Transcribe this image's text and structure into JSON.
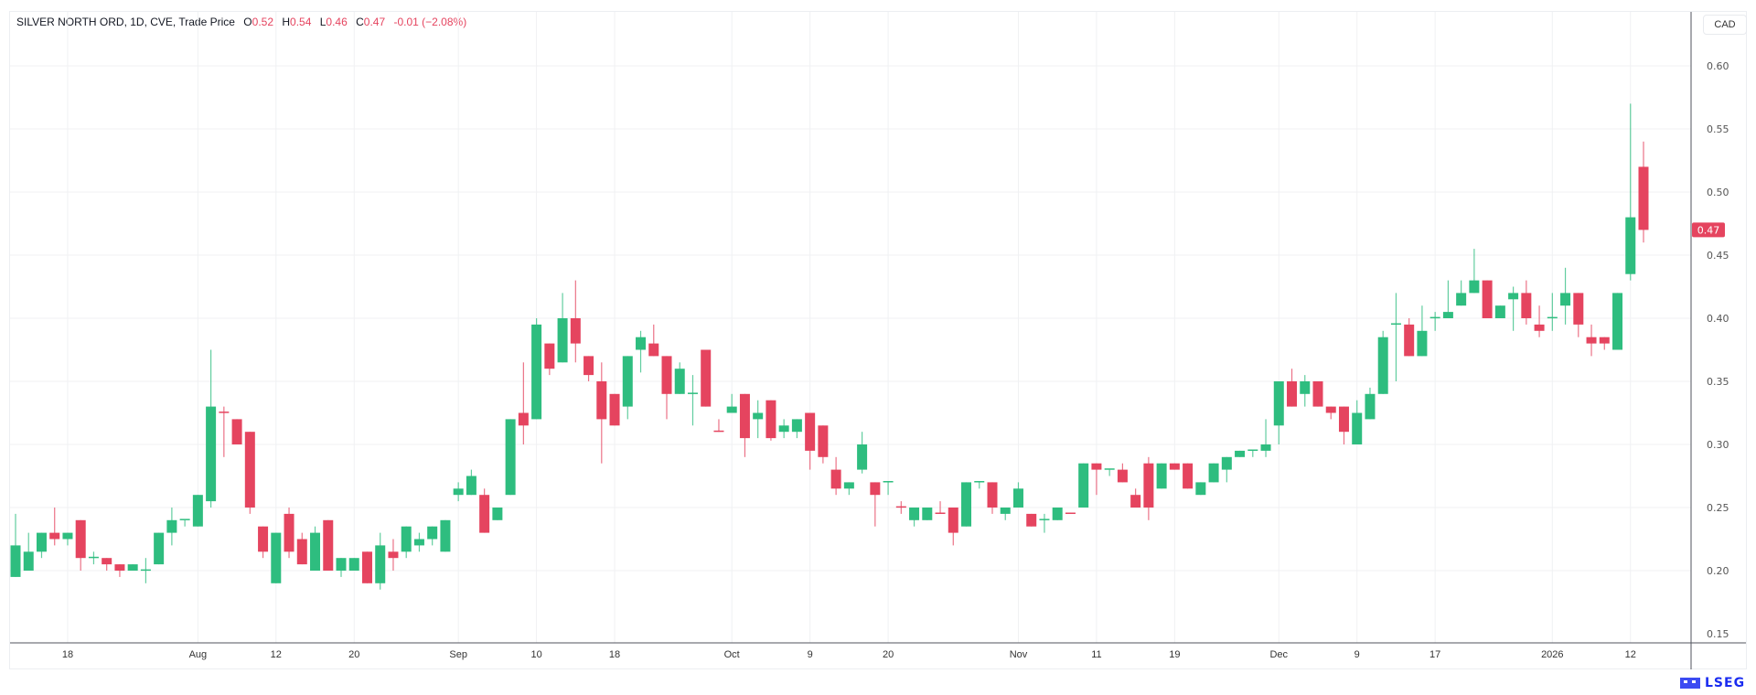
{
  "legend": {
    "title": "SILVER NORTH ORD, 1D, CVE, Trade Price",
    "open_label": "O",
    "open": "0.52",
    "high_label": "H",
    "high": "0.54",
    "low_label": "L",
    "low": "0.46",
    "close_label": "C",
    "close": "0.47",
    "change": "-0.01 (−2.08%)"
  },
  "currency": "CAD",
  "brand": {
    "name": "LSEG",
    "color": "#1a2cf0"
  },
  "colors": {
    "up": "#2ebd7f",
    "down": "#e5445f",
    "grid": "#f0f1f3",
    "axis": "#50535e"
  },
  "chart_data": {
    "type": "candlestick",
    "title": "SILVER NORTH ORD, 1D, CVE, Trade Price",
    "ylim": [
      0.15,
      0.6
    ],
    "y_ticks": [
      "0.60",
      "0.55",
      "0.50",
      "0.45",
      "0.40",
      "0.35",
      "0.30",
      "0.25",
      "0.20",
      "0.15"
    ],
    "grid": true,
    "last_price": "0.47",
    "x_ticks": [
      {
        "label": "18",
        "bar": 4
      },
      {
        "label": "Aug",
        "bar": 14
      },
      {
        "label": "12",
        "bar": 20
      },
      {
        "label": "20",
        "bar": 26
      },
      {
        "label": "Sep",
        "bar": 34
      },
      {
        "label": "10",
        "bar": 40
      },
      {
        "label": "18",
        "bar": 46
      },
      {
        "label": "Oct",
        "bar": 55
      },
      {
        "label": "9",
        "bar": 61
      },
      {
        "label": "20",
        "bar": 67
      },
      {
        "label": "Nov",
        "bar": 77
      },
      {
        "label": "11",
        "bar": 83
      },
      {
        "label": "19",
        "bar": 89
      },
      {
        "label": "Dec",
        "bar": 97
      },
      {
        "label": "9",
        "bar": 103
      },
      {
        "label": "17",
        "bar": 109
      },
      {
        "label": "2026",
        "bar": 118
      },
      {
        "label": "12",
        "bar": 124
      }
    ],
    "ohlc_fields": [
      "open",
      "high",
      "low",
      "close"
    ],
    "candles": [
      [
        0.195,
        0.245,
        0.195,
        0.22
      ],
      [
        0.2,
        0.23,
        0.2,
        0.215
      ],
      [
        0.215,
        0.23,
        0.21,
        0.23
      ],
      [
        0.23,
        0.25,
        0.22,
        0.225
      ],
      [
        0.225,
        0.23,
        0.22,
        0.23
      ],
      [
        0.24,
        0.24,
        0.2,
        0.21
      ],
      [
        0.21,
        0.215,
        0.205,
        0.211
      ],
      [
        0.21,
        0.21,
        0.2,
        0.205
      ],
      [
        0.205,
        0.205,
        0.195,
        0.2
      ],
      [
        0.2,
        0.205,
        0.2,
        0.205
      ],
      [
        0.2,
        0.21,
        0.19,
        0.201
      ],
      [
        0.205,
        0.23,
        0.205,
        0.23
      ],
      [
        0.23,
        0.25,
        0.22,
        0.24
      ],
      [
        0.24,
        0.24,
        0.235,
        0.241
      ],
      [
        0.235,
        0.26,
        0.235,
        0.26
      ],
      [
        0.255,
        0.375,
        0.25,
        0.33
      ],
      [
        0.326,
        0.33,
        0.29,
        0.325
      ],
      [
        0.32,
        0.32,
        0.3,
        0.3
      ],
      [
        0.31,
        0.31,
        0.245,
        0.25
      ],
      [
        0.235,
        0.235,
        0.21,
        0.215
      ],
      [
        0.19,
        0.23,
        0.19,
        0.23
      ],
      [
        0.245,
        0.25,
        0.21,
        0.215
      ],
      [
        0.225,
        0.23,
        0.205,
        0.205
      ],
      [
        0.2,
        0.235,
        0.2,
        0.23
      ],
      [
        0.24,
        0.24,
        0.2,
        0.2
      ],
      [
        0.2,
        0.21,
        0.195,
        0.21
      ],
      [
        0.2,
        0.21,
        0.2,
        0.21
      ],
      [
        0.215,
        0.215,
        0.19,
        0.19
      ],
      [
        0.19,
        0.23,
        0.185,
        0.22
      ],
      [
        0.215,
        0.225,
        0.2,
        0.21
      ],
      [
        0.215,
        0.235,
        0.21,
        0.235
      ],
      [
        0.22,
        0.23,
        0.215,
        0.225
      ],
      [
        0.225,
        0.235,
        0.22,
        0.235
      ],
      [
        0.215,
        0.24,
        0.215,
        0.24
      ],
      [
        0.26,
        0.27,
        0.255,
        0.265
      ],
      [
        0.26,
        0.28,
        0.26,
        0.275
      ],
      [
        0.26,
        0.265,
        0.23,
        0.23
      ],
      [
        0.24,
        0.25,
        0.24,
        0.25
      ],
      [
        0.26,
        0.32,
        0.26,
        0.32
      ],
      [
        0.325,
        0.365,
        0.3,
        0.315
      ],
      [
        0.32,
        0.4,
        0.32,
        0.395
      ],
      [
        0.38,
        0.38,
        0.355,
        0.36
      ],
      [
        0.365,
        0.42,
        0.365,
        0.4
      ],
      [
        0.4,
        0.43,
        0.365,
        0.38
      ],
      [
        0.37,
        0.37,
        0.35,
        0.355
      ],
      [
        0.35,
        0.365,
        0.285,
        0.32
      ],
      [
        0.34,
        0.34,
        0.315,
        0.315
      ],
      [
        0.33,
        0.37,
        0.32,
        0.37
      ],
      [
        0.375,
        0.39,
        0.357,
        0.385
      ],
      [
        0.38,
        0.395,
        0.37,
        0.37
      ],
      [
        0.37,
        0.37,
        0.32,
        0.34
      ],
      [
        0.34,
        0.365,
        0.34,
        0.36
      ],
      [
        0.34,
        0.355,
        0.315,
        0.341
      ],
      [
        0.375,
        0.375,
        0.33,
        0.33
      ],
      [
        0.311,
        0.32,
        0.31,
        0.31
      ],
      [
        0.325,
        0.34,
        0.325,
        0.33
      ],
      [
        0.34,
        0.34,
        0.29,
        0.305
      ],
      [
        0.32,
        0.335,
        0.305,
        0.325
      ],
      [
        0.335,
        0.335,
        0.303,
        0.305
      ],
      [
        0.31,
        0.32,
        0.305,
        0.315
      ],
      [
        0.31,
        0.32,
        0.305,
        0.32
      ],
      [
        0.325,
        0.325,
        0.28,
        0.295
      ],
      [
        0.315,
        0.315,
        0.285,
        0.29
      ],
      [
        0.28,
        0.29,
        0.26,
        0.265
      ],
      [
        0.265,
        0.27,
        0.26,
        0.27
      ],
      [
        0.28,
        0.31,
        0.277,
        0.3
      ],
      [
        0.27,
        0.27,
        0.235,
        0.26
      ],
      [
        0.27,
        0.27,
        0.26,
        0.271
      ],
      [
        0.251,
        0.255,
        0.245,
        0.25
      ],
      [
        0.24,
        0.25,
        0.235,
        0.25
      ],
      [
        0.24,
        0.25,
        0.24,
        0.25
      ],
      [
        0.246,
        0.255,
        0.245,
        0.245
      ],
      [
        0.25,
        0.25,
        0.22,
        0.23
      ],
      [
        0.235,
        0.27,
        0.235,
        0.27
      ],
      [
        0.27,
        0.27,
        0.265,
        0.271
      ],
      [
        0.27,
        0.27,
        0.245,
        0.25
      ],
      [
        0.245,
        0.25,
        0.24,
        0.25
      ],
      [
        0.25,
        0.27,
        0.25,
        0.265
      ],
      [
        0.245,
        0.245,
        0.235,
        0.235
      ],
      [
        0.24,
        0.245,
        0.23,
        0.241
      ],
      [
        0.24,
        0.25,
        0.24,
        0.25
      ],
      [
        0.246,
        0.246,
        0.245,
        0.245
      ],
      [
        0.25,
        0.285,
        0.25,
        0.285
      ],
      [
        0.285,
        0.285,
        0.26,
        0.28
      ],
      [
        0.28,
        0.28,
        0.275,
        0.281
      ],
      [
        0.28,
        0.285,
        0.27,
        0.27
      ],
      [
        0.26,
        0.265,
        0.25,
        0.25
      ],
      [
        0.285,
        0.29,
        0.24,
        0.25
      ],
      [
        0.265,
        0.285,
        0.265,
        0.285
      ],
      [
        0.285,
        0.285,
        0.28,
        0.28
      ],
      [
        0.285,
        0.285,
        0.265,
        0.265
      ],
      [
        0.26,
        0.27,
        0.26,
        0.27
      ],
      [
        0.27,
        0.285,
        0.27,
        0.285
      ],
      [
        0.28,
        0.29,
        0.27,
        0.29
      ],
      [
        0.29,
        0.295,
        0.29,
        0.295
      ],
      [
        0.295,
        0.295,
        0.29,
        0.296
      ],
      [
        0.295,
        0.32,
        0.29,
        0.3
      ],
      [
        0.315,
        0.35,
        0.3,
        0.35
      ],
      [
        0.35,
        0.36,
        0.33,
        0.33
      ],
      [
        0.34,
        0.355,
        0.33,
        0.35
      ],
      [
        0.35,
        0.35,
        0.33,
        0.33
      ],
      [
        0.33,
        0.33,
        0.32,
        0.325
      ],
      [
        0.33,
        0.33,
        0.3,
        0.31
      ],
      [
        0.3,
        0.335,
        0.3,
        0.325
      ],
      [
        0.32,
        0.345,
        0.32,
        0.34
      ],
      [
        0.34,
        0.39,
        0.34,
        0.385
      ],
      [
        0.395,
        0.42,
        0.35,
        0.396
      ],
      [
        0.395,
        0.4,
        0.37,
        0.37
      ],
      [
        0.37,
        0.41,
        0.37,
        0.39
      ],
      [
        0.4,
        0.405,
        0.39,
        0.401
      ],
      [
        0.4,
        0.43,
        0.4,
        0.405
      ],
      [
        0.41,
        0.43,
        0.41,
        0.42
      ],
      [
        0.42,
        0.455,
        0.42,
        0.43
      ],
      [
        0.43,
        0.43,
        0.4,
        0.4
      ],
      [
        0.4,
        0.41,
        0.4,
        0.41
      ],
      [
        0.415,
        0.425,
        0.39,
        0.42
      ],
      [
        0.42,
        0.43,
        0.395,
        0.4
      ],
      [
        0.395,
        0.41,
        0.385,
        0.39
      ],
      [
        0.4,
        0.42,
        0.39,
        0.401
      ],
      [
        0.41,
        0.44,
        0.395,
        0.42
      ],
      [
        0.42,
        0.42,
        0.385,
        0.395
      ],
      [
        0.385,
        0.395,
        0.37,
        0.38
      ],
      [
        0.385,
        0.385,
        0.375,
        0.38
      ],
      [
        0.375,
        0.42,
        0.375,
        0.42
      ],
      [
        0.435,
        0.57,
        0.43,
        0.48
      ],
      [
        0.52,
        0.54,
        0.46,
        0.47
      ]
    ]
  }
}
